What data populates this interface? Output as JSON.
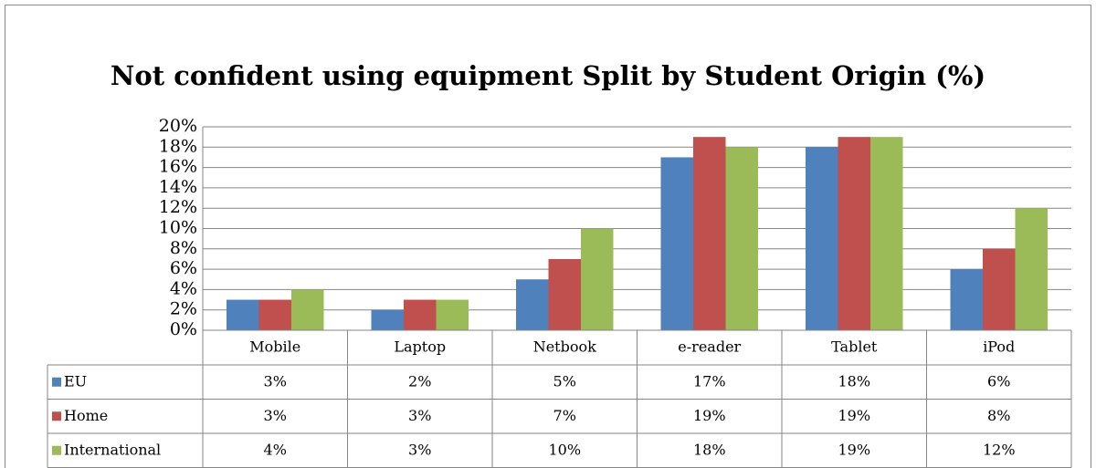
{
  "chart_data": {
    "type": "bar",
    "title": "Not confident using equipment Split by Student Origin (%)",
    "categories": [
      "Mobile",
      "Laptop",
      "Netbook",
      "e-reader",
      "Tablet",
      "iPod"
    ],
    "series": [
      {
        "name": "EU",
        "color": "#4f81bd",
        "values": [
          3,
          2,
          5,
          17,
          18,
          6
        ],
        "value_labels": [
          "3%",
          "2%",
          "5%",
          "17%",
          "18%",
          "6%"
        ]
      },
      {
        "name": "Home",
        "color": "#c0504d",
        "values": [
          3,
          3,
          7,
          19,
          19,
          8
        ],
        "value_labels": [
          "3%",
          "3%",
          "7%",
          "19%",
          "19%",
          "8%"
        ]
      },
      {
        "name": "International",
        "color": "#9bbb59",
        "values": [
          4,
          3,
          10,
          18,
          19,
          12
        ],
        "value_labels": [
          "4%",
          "3%",
          "10%",
          "18%",
          "19%",
          "12%"
        ]
      }
    ],
    "ylim": [
      0,
      20
    ],
    "yticks": [
      {
        "value": 0,
        "label": "0%"
      },
      {
        "value": 2,
        "label": "2%"
      },
      {
        "value": 4,
        "label": "4%"
      },
      {
        "value": 6,
        "label": "6%"
      },
      {
        "value": 8,
        "label": "8%"
      },
      {
        "value": 10,
        "label": "10%"
      },
      {
        "value": 12,
        "label": "12%"
      },
      {
        "value": 14,
        "label": "14%"
      },
      {
        "value": 16,
        "label": "16%"
      },
      {
        "value": 18,
        "label": "18%"
      },
      {
        "value": 20,
        "label": "20%"
      }
    ],
    "grid": true
  }
}
